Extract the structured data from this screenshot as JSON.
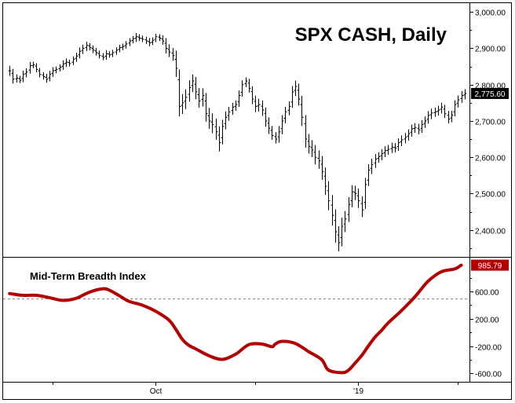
{
  "chart_data": [
    {
      "type": "ohlc",
      "title": "SPX CASH, Daily",
      "last_value_label": "2,775.60",
      "ylim": [
        2330,
        3020
      ],
      "yticks": [
        {
          "value": 3000,
          "label": "3,000.00"
        },
        {
          "value": 2900,
          "label": "2,900.00"
        },
        {
          "value": 2800,
          "label": "2,800.00"
        },
        {
          "value": 2700,
          "label": "2,700.00"
        },
        {
          "value": 2600,
          "label": "2,600.00"
        },
        {
          "value": 2500,
          "label": "2,500.00"
        },
        {
          "value": 2400,
          "label": "2,400.00"
        }
      ],
      "x_range": [
        -1,
        138
      ],
      "xticks": [
        {
          "index": 44,
          "label": "Oct"
        },
        {
          "index": 105,
          "label": "'19"
        }
      ],
      "grid": false,
      "colors": {
        "bars": "#000000",
        "badge_bg": "#000000",
        "badge_text": "#ffffff"
      },
      "series": [
        {
          "close": [
            2838,
            2815,
            2818,
            2812,
            2828,
            2835,
            2852,
            2855,
            2842,
            2828,
            2822,
            2815,
            2828,
            2838,
            2842,
            2848,
            2857,
            2862,
            2858,
            2870,
            2878,
            2892,
            2900,
            2908,
            2902,
            2895,
            2888,
            2880,
            2875,
            2885,
            2882,
            2888,
            2895,
            2902,
            2905,
            2912,
            2920,
            2926,
            2932,
            2928,
            2925,
            2920,
            2915,
            2922,
            2932,
            2928,
            2920,
            2900,
            2890,
            2880,
            2845,
            2740,
            2750,
            2765,
            2792,
            2810,
            2780,
            2755,
            2770,
            2720,
            2700,
            2690,
            2670,
            2640,
            2685,
            2710,
            2725,
            2738,
            2745,
            2770,
            2800,
            2810,
            2790,
            2760,
            2740,
            2745,
            2730,
            2700,
            2680,
            2660,
            2650,
            2670,
            2700,
            2725,
            2740,
            2780,
            2795,
            2760,
            2710,
            2650,
            2630,
            2620,
            2600,
            2590,
            2560,
            2520,
            2480,
            2440,
            2395,
            2365,
            2410,
            2430,
            2470,
            2505,
            2500,
            2480,
            2455,
            2525,
            2565,
            2580,
            2595,
            2602,
            2610,
            2618,
            2622,
            2628,
            2625,
            2640,
            2648,
            2655,
            2665,
            2678,
            2682,
            2675,
            2690,
            2700,
            2715,
            2722,
            2725,
            2730,
            2738,
            2720,
            2705,
            2716,
            2745,
            2758,
            2770,
            2775.6
          ],
          "range": [
            35,
            30,
            25,
            20,
            25,
            25,
            25,
            20,
            20,
            20,
            20,
            25,
            25,
            25,
            20,
            20,
            25,
            25,
            20,
            20,
            25,
            25,
            25,
            25,
            20,
            20,
            20,
            20,
            20,
            25,
            20,
            20,
            20,
            20,
            20,
            20,
            20,
            20,
            25,
            20,
            20,
            20,
            25,
            20,
            20,
            20,
            25,
            35,
            35,
            35,
            60,
            70,
            60,
            55,
            50,
            45,
            50,
            45,
            50,
            55,
            55,
            60,
            55,
            60,
            45,
            40,
            35,
            30,
            30,
            35,
            30,
            25,
            30,
            35,
            40,
            40,
            40,
            40,
            40,
            30,
            30,
            40,
            40,
            35,
            35,
            40,
            40,
            45,
            60,
            60,
            50,
            50,
            50,
            55,
            55,
            60,
            65,
            70,
            75,
            60,
            60,
            55,
            50,
            45,
            45,
            50,
            50,
            45,
            40,
            40,
            35,
            30,
            30,
            30,
            30,
            30,
            30,
            30,
            30,
            30,
            30,
            30,
            30,
            30,
            30,
            30,
            30,
            30,
            30,
            30,
            30,
            30,
            30,
            30,
            30,
            30,
            30,
            30
          ]
        }
      ]
    },
    {
      "type": "line",
      "title": "Mid-Term Breadth Index",
      "last_value_label": "985.79",
      "ylim": [
        -700,
        1050
      ],
      "reference_line": 500,
      "yticks": [
        {
          "value": 600,
          "label": "600.00"
        },
        {
          "value": 200,
          "label": "200.00"
        },
        {
          "value": -200,
          "label": "-200.00"
        },
        {
          "value": -600,
          "label": "-600.00"
        }
      ],
      "x_range": [
        -1,
        138
      ],
      "xticks": [
        {
          "index": 44,
          "label": "Oct"
        },
        {
          "index": 105,
          "label": "'19"
        }
      ],
      "colors": {
        "line": "#b30000",
        "badge_bg": "#b30000",
        "badge_text": "#ffffff",
        "reference": "#888888"
      },
      "series": [
        {
          "x": [
            0,
            4,
            8,
            12,
            16,
            20,
            24,
            28,
            30,
            33,
            36,
            40,
            44,
            48,
            50,
            52,
            54,
            56,
            60,
            64,
            68,
            72,
            76,
            79,
            80,
            82,
            86,
            90,
            94,
            96,
            100,
            102,
            104,
            106,
            108,
            110,
            112,
            114,
            118,
            122,
            126,
            130,
            134,
            136
          ],
          "y": [
            570,
            545,
            545,
            510,
            470,
            500,
            590,
            640,
            620,
            540,
            455,
            400,
            310,
            180,
            50,
            -100,
            -190,
            -240,
            -340,
            -395,
            -320,
            -180,
            -170,
            -210,
            -170,
            -130,
            -160,
            -280,
            -400,
            -550,
            -590,
            -555,
            -450,
            -340,
            -200,
            -70,
            30,
            140,
            320,
            520,
            750,
            890,
            930,
            985.79
          ]
        }
      ]
    }
  ]
}
